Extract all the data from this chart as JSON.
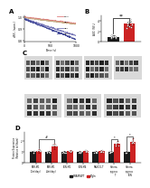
{
  "panel_a": {
    "lines": [
      {
        "color": "#e08080",
        "start": 1.0,
        "end": 0.945,
        "noise": 0.002
      },
      {
        "color": "#c4a882",
        "start": 0.993,
        "end": 0.938,
        "noise": 0.002
      },
      {
        "color": "#7878b8",
        "start": 0.985,
        "end": 0.84,
        "noise": 0.003
      },
      {
        "color": "#404898",
        "start": 0.98,
        "end": 0.81,
        "noise": 0.003
      }
    ],
    "legend_labels": [
      "Plgln",
      "GBC",
      "DBC",
      "DBC+"
    ],
    "x_label": "Time (s)",
    "y_label": "dF/F₀ (norm.)",
    "xlim": [
      0,
      1000
    ],
    "ylim": [
      0.79,
      1.01
    ],
    "x_ticks": [
      0,
      500,
      1000
    ],
    "y_ticks": [
      0.8,
      0.9,
      1.0
    ]
  },
  "panel_b": {
    "bar_values": [
      1.0,
      3.5
    ],
    "bar_colors": [
      "#1a1a1a",
      "#cc2222"
    ],
    "error_bars": [
      0.25,
      0.45
    ],
    "scatter_black": [
      0.7,
      0.8,
      0.85,
      0.9,
      1.0,
      1.05,
      1.1,
      1.15,
      1.2,
      1.3
    ],
    "scatter_red": [
      2.6,
      2.8,
      3.0,
      3.1,
      3.3,
      3.5,
      3.7,
      3.9,
      4.1,
      4.3
    ],
    "ylabel": "AUC (%F₀)",
    "sig_text": "**",
    "ylim": [
      0,
      5.0
    ]
  },
  "panel_d": {
    "group_labels": [
      "SER-M1\n(1hr/day)",
      "SER-M1\n(4hr/day)",
      "PLN-M1",
      "PLN-M4",
      "NANOG-T",
      "Hetero-\nzygous\nT",
      "Hetero-\nzygous\nPLN"
    ],
    "black_vals": [
      1.0,
      1.0,
      1.0,
      1.0,
      1.0,
      1.0,
      1.0
    ],
    "red_vals": [
      1.1,
      1.5,
      1.05,
      1.05,
      1.05,
      1.7,
      1.9
    ],
    "black_err": [
      0.12,
      0.12,
      0.1,
      0.1,
      0.1,
      0.12,
      0.12
    ],
    "red_err": [
      0.18,
      0.22,
      0.12,
      0.12,
      0.12,
      0.25,
      0.28
    ],
    "ylabel": "Protein Expression\n(Relative to Sham)",
    "ylim": [
      0,
      2.8
    ],
    "yticks": [
      0,
      1,
      2
    ],
    "sig_pairs": [
      [
        5,
        6
      ]
    ],
    "bracket_pairs": [
      [
        0,
        1
      ]
    ],
    "legend_labels": [
      "SHAM/WT",
      "Plgln"
    ],
    "legend_colors": [
      "#1a1a1a",
      "#cc2222"
    ]
  },
  "background_color": "#ffffff"
}
